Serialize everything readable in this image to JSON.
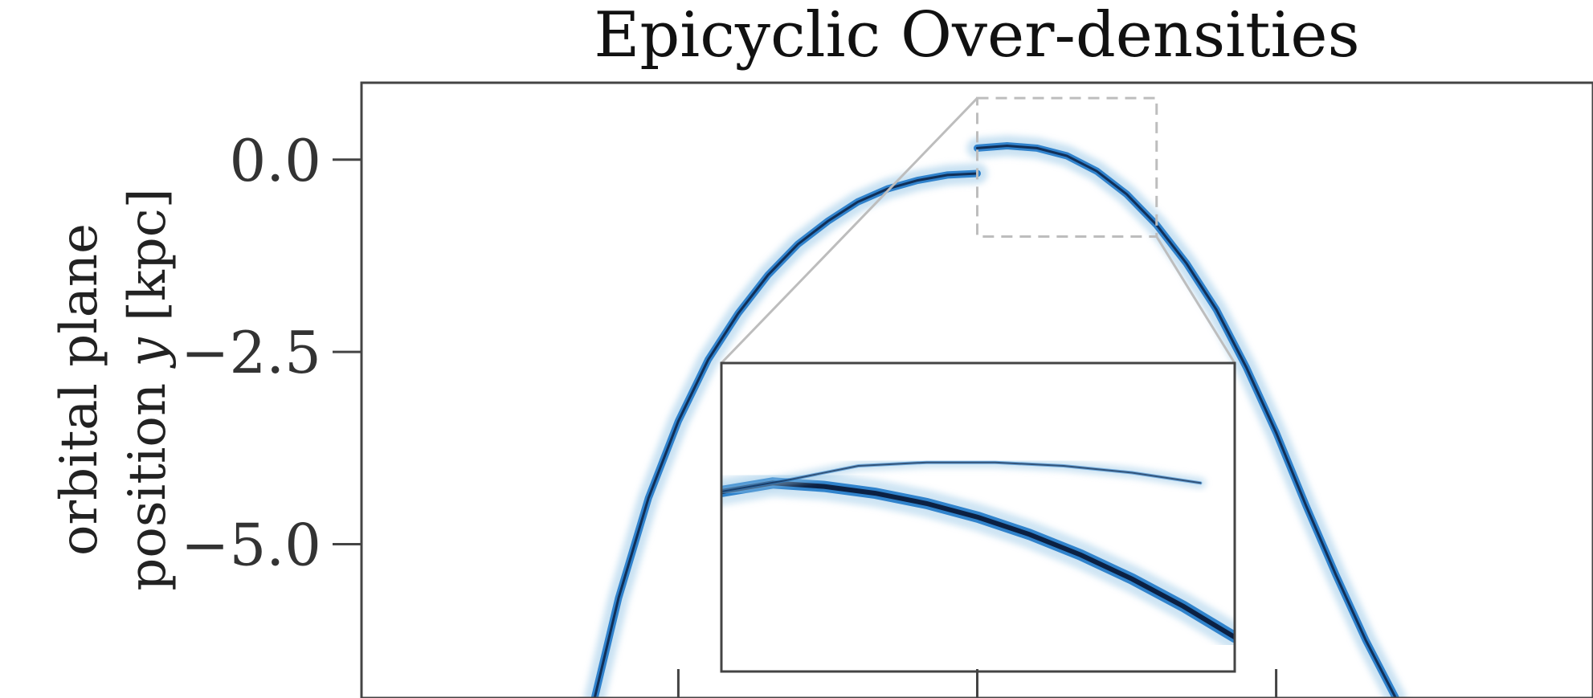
{
  "chart_data": {
    "type": "scatter",
    "title": "Epicyclic Over-densities",
    "ylabel_line1": "orbital plane",
    "ylabel_line2_prefix": "position ",
    "ylabel_var": "y",
    "ylabel_unit": " [kpc]",
    "xlabel": "",
    "ylim": [
      -7.0,
      1.0
    ],
    "xlim": [
      -10.3,
      10.3
    ],
    "yticks": [
      0.0,
      -2.5,
      -5.0
    ],
    "ytick_labels": [
      "0.0",
      "−2.5",
      "−5.0"
    ],
    "xticks": [
      -5.0,
      0.0,
      5.0
    ],
    "grid": false,
    "colors": {
      "density_dark": "#0a1a3a",
      "density_mid": "#1f78c8",
      "density_light": "#9ecae8",
      "axis": "#444444",
      "zoom_box": "#bdbdbd"
    },
    "streams": [
      {
        "name": "",
        "x": [
          -6.4,
          -6.0,
          -5.5,
          -5.0,
          -4.5,
          -4.0,
          -3.5,
          -3.0,
          -2.5,
          -2.0,
          -1.5,
          -1.0,
          -0.5,
          0.0
        ],
        "y": [
          -7.0,
          -5.7,
          -4.4,
          -3.4,
          -2.6,
          -2.0,
          -1.5,
          -1.1,
          -0.8,
          -0.55,
          -0.38,
          -0.27,
          -0.2,
          -0.18
        ]
      },
      {
        "name": "",
        "x": [
          0.0,
          0.5,
          1.0,
          1.5,
          2.0,
          2.5,
          3.0,
          3.5,
          4.0,
          4.5,
          5.0,
          5.5,
          6.0,
          6.5,
          7.0
        ],
        "y": [
          0.15,
          0.18,
          0.15,
          0.05,
          -0.15,
          -0.45,
          -0.85,
          -1.35,
          -1.95,
          -2.7,
          -3.55,
          -4.5,
          -5.4,
          -6.25,
          -7.0
        ]
      }
    ],
    "inset": {
      "region_x": [
        0.0,
        3.0
      ],
      "region_y": [
        -1.0,
        0.8
      ],
      "series": [
        {
          "name": "",
          "x": [
            0.0,
            0.3,
            0.6,
            0.9,
            1.2,
            1.5,
            1.8,
            2.1,
            2.4,
            2.7,
            3.0
          ],
          "y": [
            0.05,
            0.1,
            0.08,
            0.04,
            -0.02,
            -0.1,
            -0.2,
            -0.32,
            -0.46,
            -0.62,
            -0.8
          ]
        },
        {
          "name": "",
          "x": [
            0.0,
            0.4,
            0.8,
            1.2,
            1.6,
            2.0,
            2.4,
            2.8
          ],
          "y": [
            0.05,
            0.12,
            0.2,
            0.22,
            0.22,
            0.2,
            0.16,
            0.1
          ]
        }
      ]
    }
  }
}
